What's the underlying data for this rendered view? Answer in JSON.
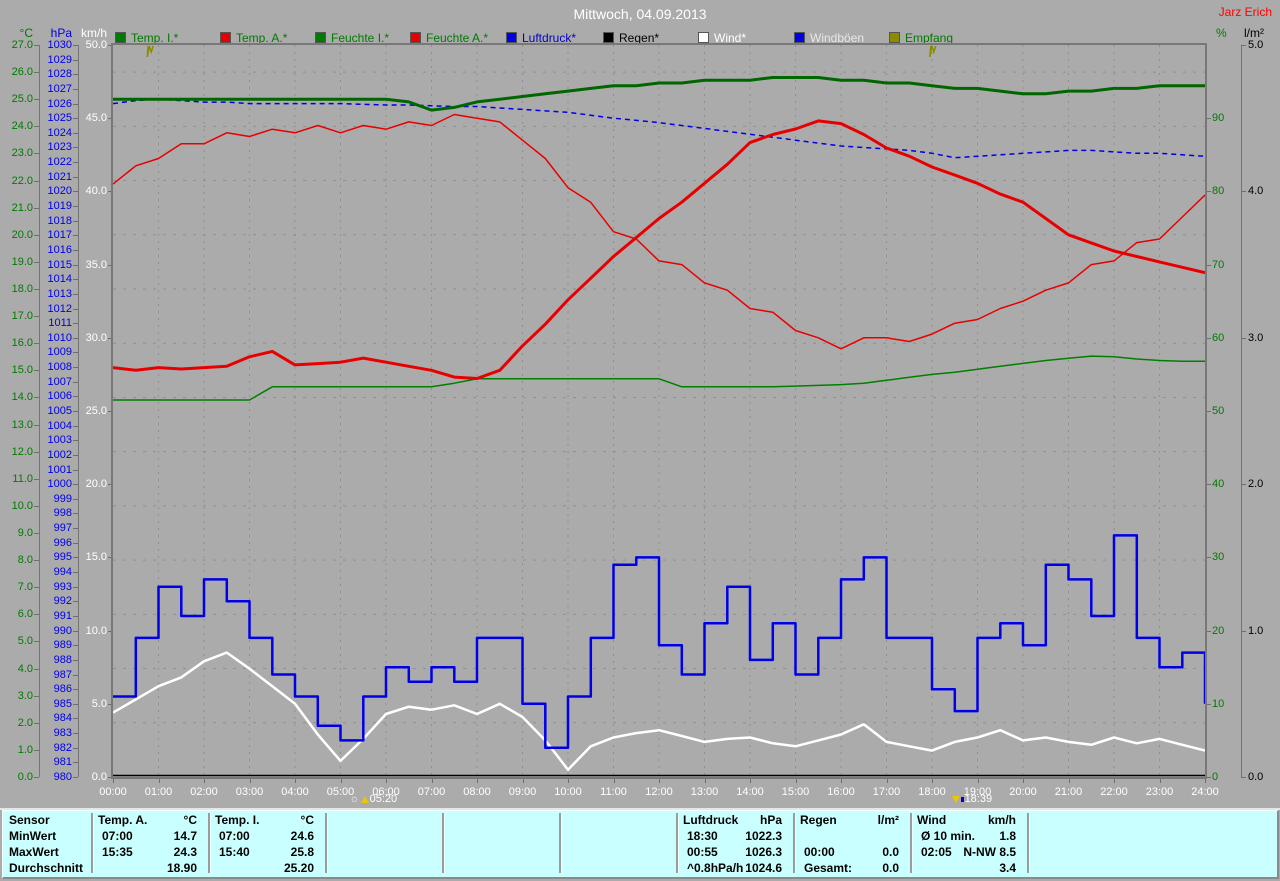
{
  "window": {
    "title": "Mittwoch, 04.09.2013",
    "station_label": "Jarz Erich"
  },
  "legend": [
    {
      "label": "Temp. I.*",
      "swatch": "#007A00",
      "text": "#007A00"
    },
    {
      "label": "Temp. A.*",
      "swatch": "#E80000",
      "text": "#007A00"
    },
    {
      "label": "Feuchte I.*",
      "swatch": "#007A00",
      "text": "#007A00"
    },
    {
      "label": "Feuchte A.*",
      "swatch": "#E80000",
      "text": "#007A00"
    },
    {
      "label": "Luftdruck*",
      "swatch": "#0000E8",
      "text": "#0000C8"
    },
    {
      "label": "Regen*",
      "swatch": "#000000",
      "text": "#000000"
    },
    {
      "label": "Wind*",
      "swatch": "#FFFFFF",
      "text": "#FFFFFF"
    },
    {
      "label": "Windböen",
      "swatch": "#0000E8",
      "text": "#E8E8E8"
    },
    {
      "label": "Empfang",
      "swatch": "#8B8B00",
      "text": "#007A00"
    }
  ],
  "chart_data": {
    "type": "line",
    "title": "Mittwoch, 04.09.2013",
    "grid": "on",
    "x_hours": [
      0,
      0.5,
      1,
      1.5,
      2,
      2.5,
      3,
      3.5,
      4,
      4.5,
      5,
      5.5,
      6,
      6.5,
      7,
      7.5,
      8,
      8.5,
      9,
      9.5,
      10,
      10.5,
      11,
      11.5,
      12,
      12.5,
      13,
      13.5,
      14,
      14.5,
      15,
      15.5,
      16,
      16.5,
      17,
      17.5,
      18,
      18.5,
      19,
      19.5,
      20,
      20.5,
      21,
      21.5,
      22,
      22.5,
      23,
      23.5,
      24
    ],
    "x_tick_labels": [
      "00:00",
      "01:00",
      "02:00",
      "03:00",
      "04:00",
      "05:00",
      "06:00",
      "07:00",
      "08:00",
      "09:00",
      "10:00",
      "11:00",
      "12:00",
      "13:00",
      "14:00",
      "15:00",
      "16:00",
      "17:00",
      "18:00",
      "19:00",
      "20:00",
      "21:00",
      "22:00",
      "23:00",
      "24:00"
    ],
    "axes": {
      "celsius": {
        "unit": "°C",
        "color": "#007A00",
        "min": 0,
        "max": 27,
        "decimals": 1,
        "ticks": [
          27,
          26,
          25,
          24,
          23,
          22,
          21,
          20,
          19,
          18,
          17,
          16,
          15,
          14,
          13,
          12,
          11,
          10,
          9,
          8,
          7,
          6,
          5,
          4,
          3,
          2,
          1,
          0
        ]
      },
      "hpa": {
        "unit": "hPa",
        "color": "#0000E8",
        "min": 980,
        "max": 1030,
        "decimals": 0,
        "ticks": [
          1030,
          1029,
          1028,
          1027,
          1026,
          1025,
          1024,
          1023,
          1022,
          1021,
          1020,
          1019,
          1018,
          1017,
          1016,
          1015,
          1014,
          1013,
          1012,
          1011,
          1010,
          1009,
          1008,
          1007,
          1006,
          1005,
          1004,
          1003,
          1002,
          1001,
          1000,
          999,
          998,
          997,
          996,
          995,
          994,
          993,
          992,
          991,
          990,
          989,
          988,
          987,
          986,
          985,
          984,
          983,
          982,
          981,
          980
        ]
      },
      "kmh": {
        "unit": "km/h",
        "color": "#FFFFFF",
        "min": 0,
        "max": 50,
        "decimals": 1,
        "ticks": [
          50,
          45,
          40,
          35,
          30,
          25,
          20,
          15,
          10,
          5,
          0
        ]
      },
      "percent": {
        "unit": "%",
        "color": "#007A00",
        "min": 0,
        "max": 100,
        "decimals": 0,
        "ticks": [
          90,
          80,
          70,
          60,
          50,
          40,
          30,
          20,
          10,
          0
        ]
      },
      "lm2": {
        "unit": "l/m²",
        "color": "#000000",
        "min": 0,
        "max": 5,
        "decimals": 1,
        "ticks": [
          5,
          4,
          3,
          2,
          1,
          0
        ]
      }
    },
    "series": [
      {
        "id": "regen",
        "name": "Regen",
        "axis": "lm2",
        "color": "#000000",
        "width": 1.5,
        "style": "solid",
        "values": [
          0,
          0,
          0,
          0,
          0,
          0,
          0,
          0,
          0,
          0,
          0,
          0,
          0,
          0,
          0,
          0,
          0,
          0,
          0,
          0,
          0,
          0,
          0,
          0,
          0,
          0,
          0,
          0,
          0,
          0,
          0,
          0,
          0,
          0,
          0,
          0,
          0,
          0,
          0,
          0,
          0,
          0,
          0,
          0,
          0,
          0,
          0,
          0,
          0
        ]
      },
      {
        "id": "luftdruck",
        "name": "Luftdruck",
        "axis": "hpa",
        "color": "#0000E8",
        "width": 1.5,
        "style": "dashed",
        "values": [
          1026.0,
          1026.2,
          1026.3,
          1026.2,
          1026.1,
          1026.1,
          1026.0,
          1026.0,
          1026.0,
          1026.0,
          1026.0,
          1025.95,
          1025.9,
          1025.9,
          1025.85,
          1025.8,
          1025.8,
          1025.7,
          1025.6,
          1025.5,
          1025.4,
          1025.2,
          1025.0,
          1024.85,
          1024.7,
          1024.5,
          1024.3,
          1024.1,
          1023.9,
          1023.7,
          1023.5,
          1023.3,
          1023.1,
          1023.0,
          1022.9,
          1022.8,
          1022.6,
          1022.3,
          1022.4,
          1022.5,
          1022.6,
          1022.7,
          1022.8,
          1022.8,
          1022.7,
          1022.6,
          1022.6,
          1022.5,
          1022.4
        ]
      },
      {
        "id": "feuchte_i",
        "name": "Feuchte I.",
        "axis": "percent",
        "color": "#008000",
        "width": 1.5,
        "style": "solid",
        "values": [
          51.5,
          51.5,
          51.5,
          51.5,
          51.5,
          51.5,
          51.5,
          53.3,
          53.3,
          53.3,
          53.3,
          53.3,
          53.3,
          53.3,
          53.3,
          53.8,
          54.4,
          54.4,
          54.4,
          54.4,
          54.4,
          54.4,
          54.4,
          54.4,
          54.4,
          53.3,
          53.3,
          53.3,
          53.3,
          53.3,
          53.4,
          53.5,
          53.6,
          53.8,
          54.2,
          54.6,
          55.0,
          55.3,
          55.7,
          56.1,
          56.5,
          56.9,
          57.2,
          57.5,
          57.4,
          57.1,
          56.9,
          56.8,
          56.8
        ]
      },
      {
        "id": "feuchte_a",
        "name": "Feuchte A.",
        "axis": "percent",
        "color": "#E80000",
        "width": 1.5,
        "style": "solid",
        "values": [
          81,
          83.5,
          84.5,
          86.5,
          86.5,
          88,
          87.5,
          88.5,
          88,
          89,
          88,
          89,
          88.5,
          89.5,
          89,
          90.5,
          90,
          89.5,
          87,
          84.5,
          80.5,
          78.5,
          74.5,
          73.5,
          70.5,
          70,
          67.5,
          66.5,
          64,
          63.5,
          61,
          60,
          58.5,
          60,
          60,
          59.5,
          60.5,
          62,
          62.5,
          64,
          65,
          66.5,
          67.5,
          70,
          70.5,
          73,
          73.5,
          76.5,
          79.5
        ]
      },
      {
        "id": "temp_i",
        "name": "Temp. I.",
        "axis": "celsius",
        "color": "#006600",
        "width": 3,
        "style": "solid",
        "values": [
          25.0,
          25.0,
          25.0,
          25.0,
          25.0,
          25.0,
          25.0,
          25.0,
          25.0,
          25.0,
          25.0,
          25.0,
          25.0,
          24.9,
          24.6,
          24.7,
          24.9,
          25.0,
          25.1,
          25.2,
          25.3,
          25.4,
          25.5,
          25.5,
          25.6,
          25.6,
          25.7,
          25.7,
          25.7,
          25.8,
          25.8,
          25.8,
          25.7,
          25.7,
          25.6,
          25.6,
          25.5,
          25.4,
          25.4,
          25.3,
          25.2,
          25.2,
          25.3,
          25.3,
          25.4,
          25.4,
          25.5,
          25.5,
          25.5
        ]
      },
      {
        "id": "temp_a",
        "name": "Temp. A.",
        "axis": "celsius",
        "color": "#E80000",
        "width": 3,
        "style": "solid",
        "values": [
          15.1,
          15.0,
          15.1,
          15.05,
          15.1,
          15.15,
          15.5,
          15.7,
          15.2,
          15.25,
          15.3,
          15.45,
          15.3,
          15.15,
          15.0,
          14.75,
          14.7,
          15.0,
          15.9,
          16.7,
          17.6,
          18.4,
          19.2,
          19.9,
          20.6,
          21.2,
          21.9,
          22.6,
          23.4,
          23.7,
          23.9,
          24.2,
          24.1,
          23.7,
          23.2,
          22.9,
          22.5,
          22.2,
          21.9,
          21.5,
          21.2,
          20.6,
          20.0,
          19.7,
          19.4,
          19.2,
          19.0,
          18.8,
          18.6
        ]
      },
      {
        "id": "wind",
        "name": "Wind",
        "axis": "kmh",
        "color": "#FFFFFF",
        "width": 2.5,
        "style": "solid",
        "values": [
          4.4,
          5.3,
          6.2,
          6.8,
          7.9,
          8.5,
          7.4,
          6.2,
          5.0,
          2.9,
          1.1,
          2.6,
          4.3,
          4.8,
          4.6,
          4.9,
          4.3,
          5.0,
          4.1,
          2.5,
          0.5,
          2.1,
          2.7,
          3.0,
          3.2,
          2.8,
          2.4,
          2.6,
          2.7,
          2.3,
          2.1,
          2.5,
          2.9,
          3.6,
          2.4,
          2.1,
          1.8,
          2.4,
          2.7,
          3.2,
          2.5,
          2.7,
          2.4,
          2.2,
          2.7,
          2.3,
          2.6,
          2.2,
          1.8
        ]
      },
      {
        "id": "windboeen",
        "name": "Windböen",
        "axis": "kmh",
        "color": "#0000E8",
        "width": 2.5,
        "style": "step",
        "values": [
          5.5,
          9.5,
          13.0,
          11.0,
          13.5,
          12.0,
          9.5,
          7.0,
          5.5,
          3.5,
          2.5,
          5.5,
          7.5,
          6.5,
          7.5,
          6.5,
          9.5,
          9.5,
          5.0,
          2.0,
          5.5,
          9.5,
          14.5,
          15.0,
          9.0,
          7.0,
          10.5,
          13.0,
          8.0,
          10.5,
          7.0,
          9.5,
          13.5,
          15.0,
          9.5,
          9.5,
          6.0,
          4.5,
          9.5,
          10.5,
          9.0,
          14.5,
          13.5,
          11.0,
          16.5,
          9.5,
          7.5,
          8.5,
          5.0
        ]
      },
      {
        "id": "empfang",
        "name": "Empfang",
        "axis": "percent",
        "color": "#8B8B00",
        "width": 1.5,
        "style": "dropouts",
        "dropout_hours": [
          0.84,
          18.04
        ]
      }
    ],
    "sun_markers": {
      "sunrise": {
        "time": "05:20",
        "hour": 5.33
      },
      "sunset": {
        "time": "18:39",
        "hour": 18.65
      }
    }
  },
  "summary_table": {
    "row_headers": [
      "Sensor",
      "MinWert",
      "MaxWert",
      "Durchschnitt"
    ],
    "sections": [
      {
        "slot": 0,
        "title": "Temp. A.",
        "unit": "°C",
        "rows": [
          [
            "07:00",
            "14.7"
          ],
          [
            "15:35",
            "24.3"
          ],
          [
            "",
            "18.90"
          ]
        ]
      },
      {
        "slot": 1,
        "title": "Temp. I.",
        "unit": "°C",
        "rows": [
          [
            "07:00",
            "24.6"
          ],
          [
            "15:40",
            "25.8"
          ],
          [
            "",
            "25.20"
          ]
        ]
      },
      {
        "slot": 5,
        "title": "Luftdruck",
        "unit": "hPa",
        "rows": [
          [
            "18:30",
            "1022.3"
          ],
          [
            "00:55",
            "1026.3"
          ],
          [
            "^0.8hPa/h",
            "1024.6"
          ]
        ]
      },
      {
        "slot": 6,
        "title": "Regen",
        "unit": "l/m²",
        "rows": [
          [
            "",
            ""
          ],
          [
            "00:00",
            "0.0"
          ],
          [
            "Gesamt:",
            "0.0"
          ]
        ]
      },
      {
        "slot": 7,
        "title": "Wind",
        "unit": "km/h",
        "rows": [
          [
            "Ø 10 min.",
            "1.8"
          ],
          [
            "02:05",
            "N-NW 8.5"
          ],
          [
            "",
            "3.4"
          ]
        ]
      }
    ]
  }
}
